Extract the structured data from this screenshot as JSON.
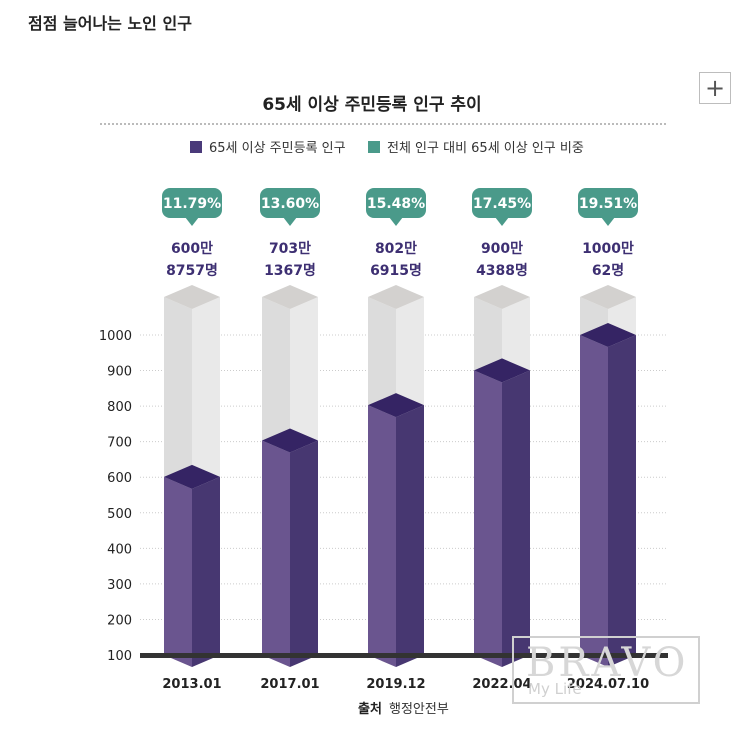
{
  "page": {
    "heading": "점점 늘어나는 노인 인구"
  },
  "toolbar": {
    "expand_label": "+"
  },
  "watermark": {
    "main": "BRAVO",
    "sub": "My Life"
  },
  "chart_data": {
    "type": "bar",
    "title": "65세 이상 주민등록 인구 추이",
    "legend": [
      {
        "name": "65세 이상 주민등록 인구",
        "color": "#4a3a7a"
      },
      {
        "name": "전체 인구 대비 65세 이상 인구 비중",
        "color": "#4a9a8a"
      }
    ],
    "categories": [
      "2013.01",
      "2017.01",
      "2019.12",
      "2022.04",
      "2024.07.10"
    ],
    "values": [
      600.8757,
      703.1367,
      802.6915,
      900.4388,
      1000.0062
    ],
    "percent_labels": [
      "11.79%",
      "13.60%",
      "15.48%",
      "17.45%",
      "19.51%"
    ],
    "value_labels_line1": [
      "600만",
      "703만",
      "802만",
      "900만",
      "1000만"
    ],
    "value_labels_line2": [
      "8757명",
      "1367명",
      "6915명",
      "4388명",
      "62명"
    ],
    "y_ticks": [
      "100",
      "200",
      "300",
      "400",
      "500",
      "600",
      "700",
      "800",
      "900",
      "1000"
    ],
    "ylim": [
      100,
      1000
    ],
    "source_label": "출처",
    "source_text": "행정안전부",
    "colors": {
      "bar_front": "#6a558f",
      "bar_side": "#473771",
      "bar_top": "#352464",
      "ghost_front": "#dcdcdc",
      "ghost_side": "#e9e9e9",
      "ghost_top": "#d3d1cf",
      "bubble": "#4a9a8a",
      "value_text": "#3d2f72",
      "baseline": "#333333"
    }
  }
}
